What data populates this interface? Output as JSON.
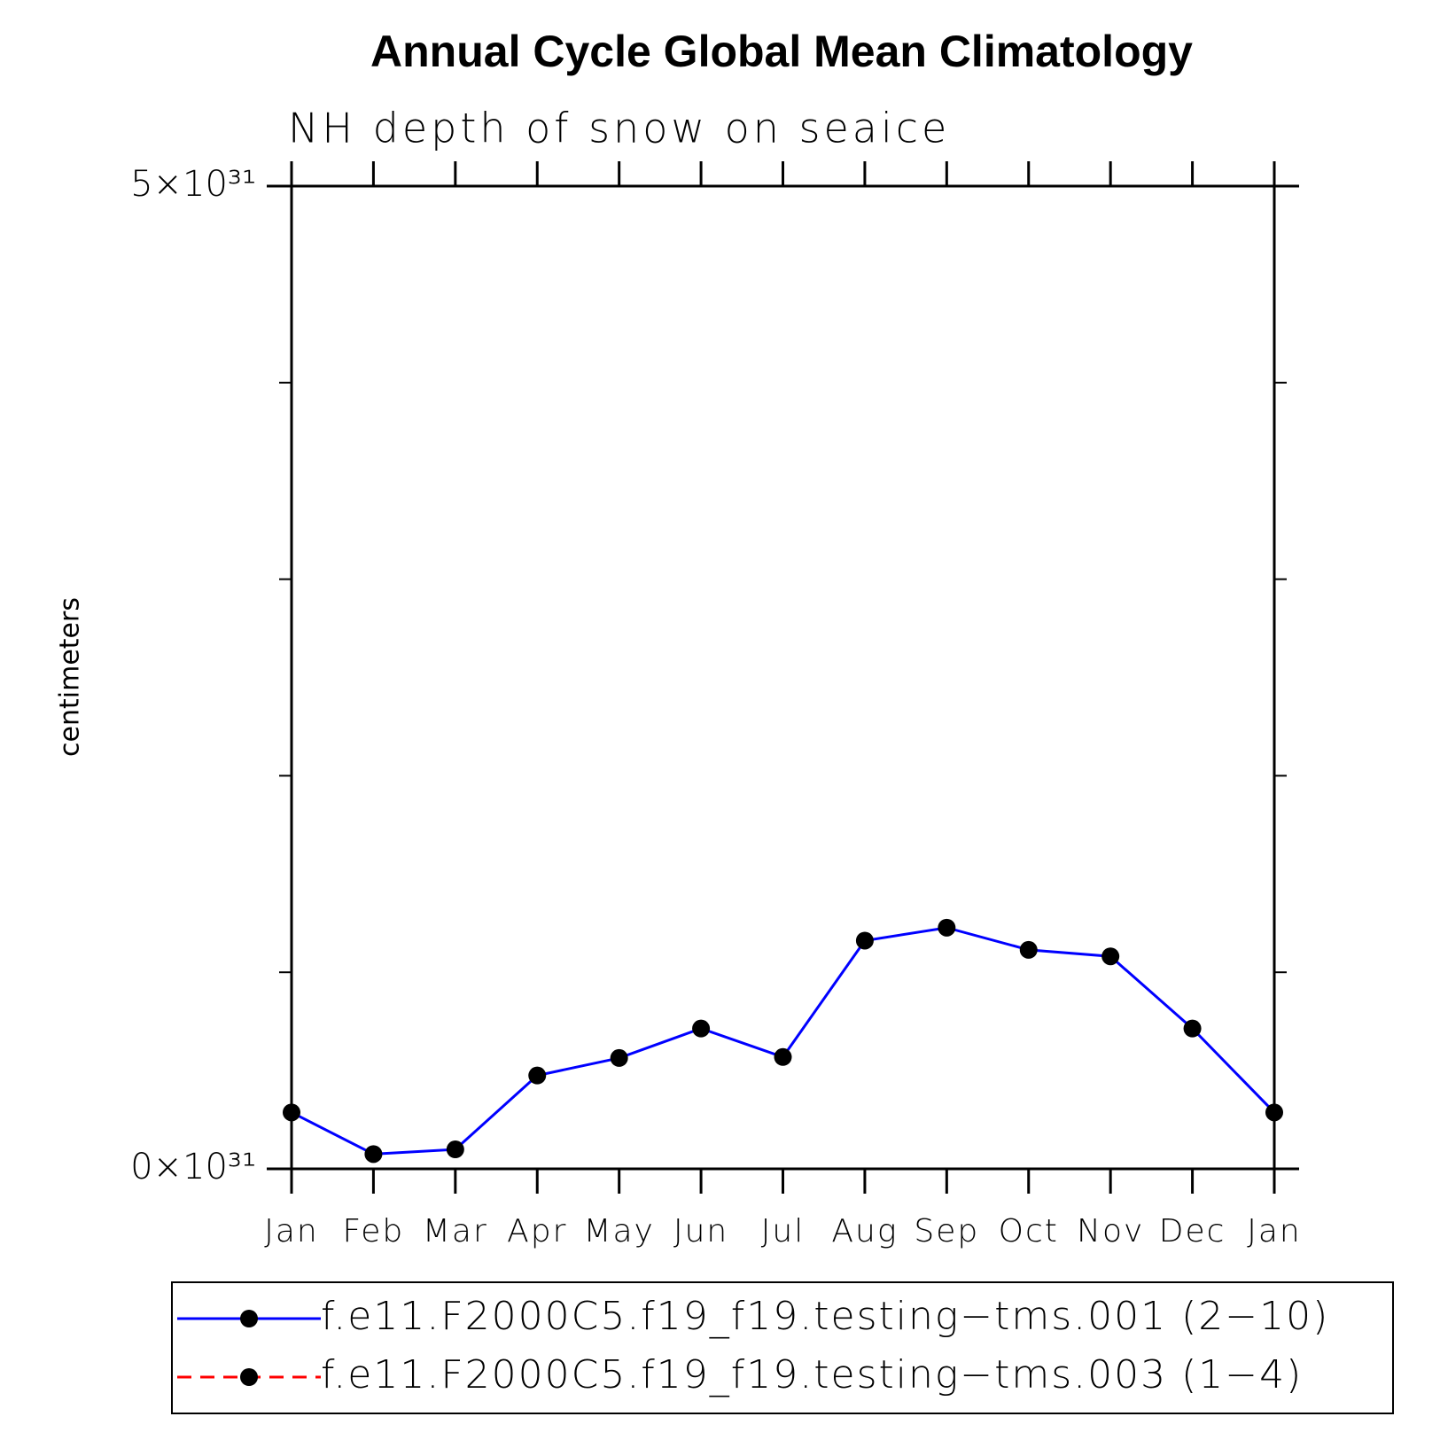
{
  "chart_data": {
    "type": "line",
    "title": "Annual Cycle Global Mean Climatology",
    "subtitle": "NH depth of snow on seaice",
    "y_label": "centimeters",
    "categories": [
      "Jan",
      "Feb",
      "Mar",
      "Apr",
      "May",
      "Jun",
      "Jul",
      "Aug",
      "Sep",
      "Oct",
      "Nov",
      "Dec",
      "Jan"
    ],
    "series": [
      {
        "name": "f.e11.F2000C5.f19_f19.testing−tms.001 (2−10)",
        "color": "#0000ff",
        "dash": "solid",
        "values": [
          2.87e+30,
          7.5e+29,
          9.9e+29,
          4.75e+30,
          5.64e+30,
          7.14e+30,
          5.69e+30,
          1.161e+31,
          1.227e+31,
          1.114e+31,
          1.081e+31,
          7.14e+30,
          2.87e+30
        ]
      },
      {
        "name": "f.e11.F2000C5.f19_f19.testing−tms.003 (1−4)",
        "color": "#ff0000",
        "dash": "dashed",
        "values": [
          null,
          null,
          null,
          null,
          null,
          null,
          null,
          null,
          null,
          null,
          null,
          null,
          null
        ]
      }
    ],
    "marker_color": "#000000",
    "ylim": [
      0,
      5e+31
    ],
    "yticks": [
      {
        "value": 0,
        "label": "0×10³¹"
      },
      {
        "value": 5e+31,
        "label": "5×10³¹"
      }
    ],
    "minor_yticks": [
      1e+31,
      2e+31,
      3e+31,
      4e+31
    ]
  }
}
